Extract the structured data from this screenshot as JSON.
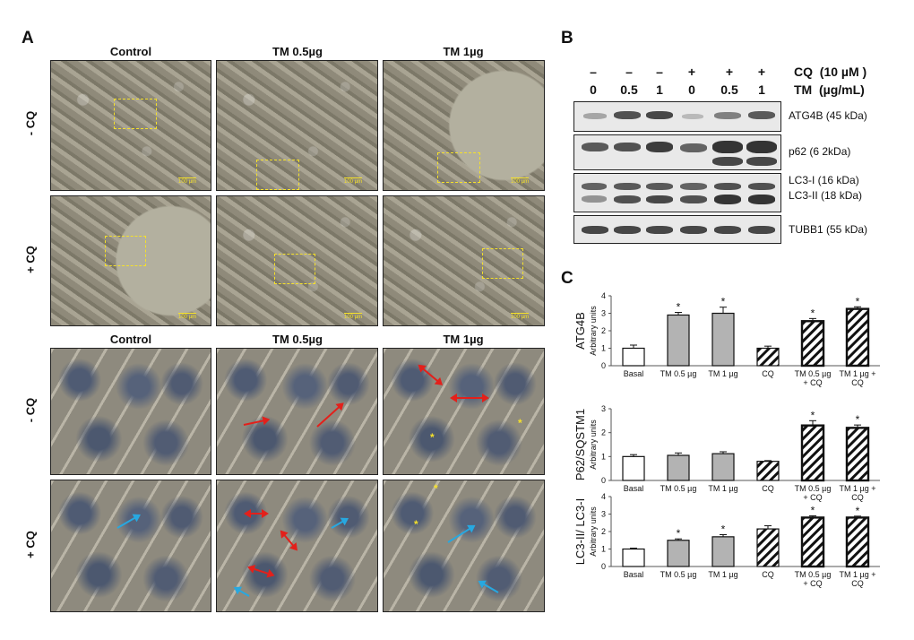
{
  "panel_a": {
    "letter": "A",
    "top": {
      "columns": [
        "Control",
        "TM 0.5µg",
        "TM 1µg"
      ],
      "rows": [
        "- CQ",
        "+ CQ"
      ],
      "scale_bar": "100 µm"
    },
    "bottom": {
      "columns": [
        "Control",
        "TM 0.5µg",
        "TM 1µg"
      ],
      "rows": [
        "- CQ",
        "+ CQ"
      ]
    }
  },
  "panel_b": {
    "letter": "B",
    "cq_signs": [
      "–",
      "–",
      "–",
      "+",
      "+",
      "+"
    ],
    "tm_values": [
      "0",
      "0.5",
      "1",
      "0",
      "0.5",
      "1"
    ],
    "cq_label": "CQ  (10 µM )",
    "tm_label": "TM  (µg/mL)",
    "blots": [
      "ATG4B (45 kDa)",
      "p62 (6 2kDa)",
      "LC3-I (16 kDa)",
      "LC3-II (18 kDa)",
      "TUBB1 (55 kDa)"
    ]
  },
  "panel_c": {
    "letter": "C",
    "y_unit": "Arbitrary units",
    "categories": [
      "Basal",
      "TM 0.5 µg",
      "TM 1 µg",
      "CQ",
      "TM 0.5 µg + CQ",
      "TM 1 µg + CQ"
    ]
  },
  "colors": {
    "arrow_red": "#e3201b",
    "arrow_blue": "#27a8e0",
    "roi_yellow": "#f5e12a",
    "bar_gray": "#b3b3b3"
  },
  "chart_data": [
    {
      "type": "bar",
      "ylabel": "ATG4B",
      "ylim": [
        0,
        4
      ],
      "yticks": [
        0,
        1,
        2,
        3,
        4
      ],
      "categories": [
        "Basal",
        "TM 0.5 µg",
        "TM 1 µg",
        "CQ",
        "TM 0.5 µg + CQ",
        "TM 1 µg + CQ"
      ],
      "values": [
        1.0,
        2.9,
        3.0,
        1.0,
        2.55,
        3.25
      ],
      "errors": [
        0.18,
        0.15,
        0.35,
        0.12,
        0.15,
        0.12
      ],
      "significance": [
        "",
        "*",
        "*",
        "",
        "*",
        "*"
      ]
    },
    {
      "type": "bar",
      "ylabel": "P62/SQSTM1",
      "ylim": [
        0,
        3
      ],
      "yticks": [
        0,
        1,
        2,
        3
      ],
      "categories": [
        "Basal",
        "TM 0.5 µg",
        "TM 1 µg",
        "CQ",
        "TM 0.5 µg + CQ",
        "TM 1 µg + CQ"
      ],
      "values": [
        1.0,
        1.05,
        1.12,
        0.8,
        2.3,
        2.2
      ],
      "errors": [
        0.08,
        0.1,
        0.08,
        0.03,
        0.2,
        0.12
      ],
      "significance": [
        "",
        "",
        "",
        "",
        "*",
        "*"
      ]
    },
    {
      "type": "bar",
      "ylabel": "LC3-II/ LC3-I",
      "ylim": [
        0,
        4
      ],
      "yticks": [
        0,
        1,
        2,
        3,
        4
      ],
      "categories": [
        "Basal",
        "TM 0.5 µg",
        "TM 1 µg",
        "CQ",
        "TM 0.5 µg + CQ",
        "TM 1 µg + CQ"
      ],
      "values": [
        1.0,
        1.5,
        1.7,
        2.15,
        2.8,
        2.8
      ],
      "errors": [
        0.05,
        0.08,
        0.12,
        0.18,
        0.1,
        0.08
      ],
      "significance": [
        "",
        "*",
        "*",
        "",
        "*",
        "*"
      ]
    }
  ]
}
